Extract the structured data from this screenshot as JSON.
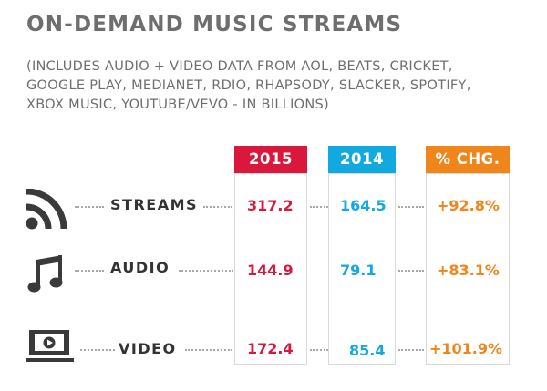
{
  "title": "ON-DEMAND MUSIC STREAMS",
  "subtitle_lines": [
    "(INCLUDES AUDIO + VIDEO DATA FROM AOL, BEATS, CRICKET,",
    "GOOGLE PLAY, MEDIANET, RDIO, RHAPSODY, SLACKER, SPOTIFY,",
    "XBOX MUSIC, YOUTUBE/VEVO - IN BILLIONS)"
  ],
  "colors": {
    "col_2015": "#d9183b",
    "col_2014": "#12a8e0",
    "col_chg": "#f0851a",
    "title": "#6e6e6e",
    "icon": "#3a3a3a"
  },
  "icons": [
    "rss-icon",
    "music-note-icon",
    "video-monitor-icon"
  ],
  "chart_data": {
    "type": "table",
    "title": "ON-DEMAND MUSIC STREAMS",
    "columns": [
      "2015",
      "2014",
      "% CHG."
    ],
    "rows": [
      {
        "label": "STREAMS",
        "v2015": "317.2",
        "v2014": "164.5",
        "chg": "+92.8%"
      },
      {
        "label": "AUDIO",
        "v2015": "144.9",
        "v2014": "79.1",
        "chg": "+83.1%"
      },
      {
        "label": "VIDEO",
        "v2015": "172.4",
        "v2014": "85.4",
        "chg": "+101.9%"
      }
    ],
    "units": "billions"
  }
}
